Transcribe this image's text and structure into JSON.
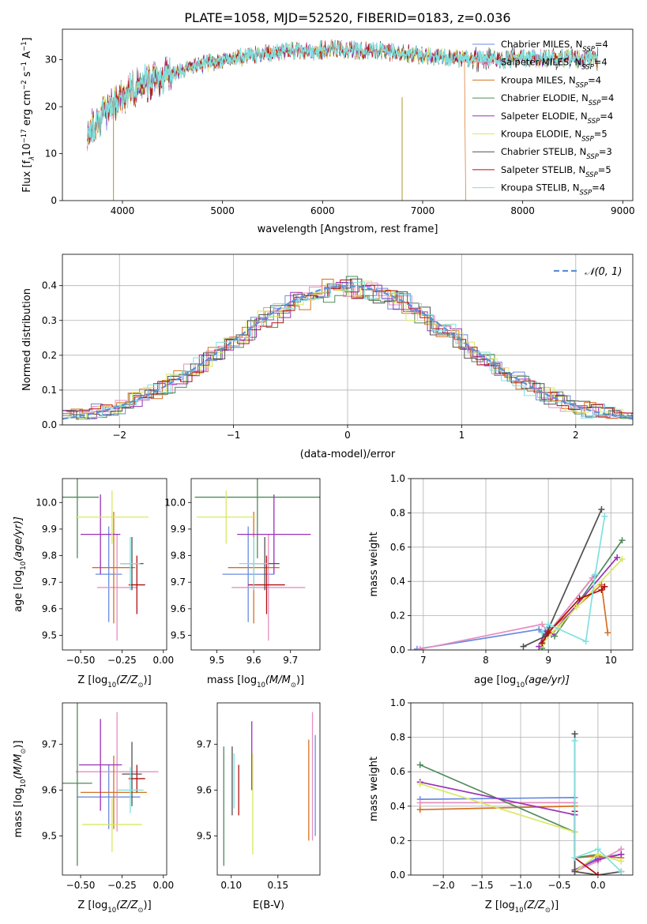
{
  "figure": {
    "title": "PLATE=1058, MJD=52520, FIBERID=0183, z=0.036"
  },
  "chart_data": [
    {
      "id": "spectrum",
      "type": "line",
      "xlabel": "wavelength [Angstrom, rest frame]",
      "ylabel": "Flux [f",
      "ylabel_lambda": "λ",
      "ylabel_rest": "10",
      "ylabel_exp": "−17",
      "ylabel_units": " erg cm",
      "ylabel_exp2": "−2",
      "ylabel_s": " s",
      "ylabel_exp3": "−1",
      "ylabel_A": " A",
      "ylabel_exp4": "−1",
      "ylabel_end": "]",
      "xlim": [
        3400,
        9100
      ],
      "ylim": [
        0,
        36.5
      ],
      "xticks": [
        4000,
        5000,
        6000,
        7000,
        8000,
        9000
      ],
      "yticks": [
        0,
        10,
        20,
        30
      ],
      "legend_position": "upper-right",
      "continuum": {
        "x": [
          3650,
          3750,
          3850,
          3950,
          4050,
          4150,
          4300,
          4500,
          4700,
          4900,
          5100,
          5300,
          5500,
          5700,
          5900,
          6100,
          6300,
          6500,
          6700,
          6900,
          7100,
          7300,
          7450
        ],
        "y": [
          14,
          17,
          19,
          21,
          23,
          24.5,
          25.5,
          27,
          28.5,
          29.5,
          30.3,
          31,
          31.5,
          31.8,
          32,
          32.2,
          32.1,
          32,
          31.6,
          31.2,
          30.8,
          30.4,
          30.2
        ]
      },
      "series": [
        {
          "name": "Chabrier MILES, N",
          "sub": "SSP",
          "suffix": "=4",
          "color": "#6a8be0"
        },
        {
          "name": "Salpeter MILES, N",
          "sub": "SSP",
          "suffix": "=4",
          "color": "#e68fbf"
        },
        {
          "name": "Kroupa MILES, N",
          "sub": "SSP",
          "suffix": "=4",
          "color": "#d57020"
        },
        {
          "name": "Chabrier ELODIE, N",
          "sub": "SSP",
          "suffix": "=4",
          "color": "#508a5a"
        },
        {
          "name": "Salpeter ELODIE, N",
          "sub": "SSP",
          "suffix": "=4",
          "color": "#9b30b8"
        },
        {
          "name": "Kroupa ELODIE, N",
          "sub": "SSP",
          "suffix": "=5",
          "color": "#d8e860"
        },
        {
          "name": "Chabrier STELIB, N",
          "sub": "SSP",
          "suffix": "=3",
          "color": "#505050"
        },
        {
          "name": "Salpeter STELIB, N",
          "sub": "SSP",
          "suffix": "=5",
          "color": "#b01010"
        },
        {
          "name": "Kroupa STELIB, N",
          "sub": "SSP",
          "suffix": "=4",
          "color": "#80e0e0"
        }
      ]
    },
    {
      "id": "residuals",
      "type": "bar",
      "xlabel": "(data-model)/error",
      "ylabel": "Normed distribution",
      "xlim": [
        -2.5,
        2.5
      ],
      "ylim": [
        0,
        0.49
      ],
      "xticks": [
        -2,
        -1,
        0,
        1,
        2
      ],
      "xtick_labels": [
        "−2",
        "−1",
        "0",
        "1",
        "2"
      ],
      "yticks": [
        0.0,
        0.1,
        0.2,
        0.3,
        0.4
      ],
      "ytick_labels": [
        "0.0",
        "0.1",
        "0.2",
        "0.3",
        "0.4"
      ],
      "grid": true,
      "legend_position": "upper-right",
      "gaussian_label": "𝒩(0, 1)",
      "gaussian_color": "#5b8fd6",
      "bin_width": 0.1
    },
    {
      "id": "age-vs-Z",
      "type": "scatter",
      "xlabel": "Z [log",
      "xlabel_sub": "10",
      "xlabel_rest": "(Z/Z",
      "xlabel_sun": "⊙",
      "xlabel_end": ")]",
      "ylabel": "age  [log",
      "ylabel_sub": "10",
      "ylabel_rest": "(age/yr)]",
      "xlim": [
        -0.61,
        0.02
      ],
      "ylim": [
        9.445,
        10.09
      ],
      "xticks": [
        -0.5,
        -0.25,
        0.0
      ],
      "xtick_labels": [
        "−0.50",
        "−0.25",
        "0.00"
      ],
      "yticks": [
        9.5,
        9.6,
        9.7,
        9.8,
        9.9,
        10.0
      ],
      "ytick_labels": [
        "9.5",
        "9.6",
        "9.7",
        "9.8",
        "9.9",
        "10.0"
      ],
      "points": [
        {
          "x": -0.33,
          "y": 9.73,
          "xerr": 0.08,
          "yerr": 0.18,
          "color": "#6a8be0"
        },
        {
          "x": -0.28,
          "y": 9.68,
          "xerr": 0.12,
          "yerr": 0.2,
          "color": "#e68fbf"
        },
        {
          "x": -0.3,
          "y": 9.755,
          "xerr": 0.13,
          "yerr": 0.21,
          "color": "#d57020"
        },
        {
          "x": -0.52,
          "y": 10.02,
          "xerr": 0.13,
          "yerr": 0.23,
          "color": "#508a5a"
        },
        {
          "x": -0.38,
          "y": 9.88,
          "xerr": 0.12,
          "yerr": 0.15,
          "color": "#9b30b8"
        },
        {
          "x": -0.31,
          "y": 9.945,
          "xerr": 0.22,
          "yerr": 0.1,
          "color": "#d8e860"
        },
        {
          "x": -0.19,
          "y": 9.77,
          "xerr": 0.07,
          "yerr": 0.1,
          "color": "#505050"
        },
        {
          "x": -0.16,
          "y": 9.69,
          "xerr": 0.05,
          "yerr": 0.11,
          "color": "#b01010"
        },
        {
          "x": -0.2,
          "y": 9.77,
          "xerr": 0.06,
          "yerr": 0.1,
          "color": "#80e0e0"
        }
      ]
    },
    {
      "id": "age-vs-mass",
      "type": "scatter",
      "xlabel": "mass [log",
      "xlabel_sub": "10",
      "xlabel_rest": "(M/M",
      "xlabel_sun": "⊙",
      "xlabel_end": ")]",
      "xlim": [
        9.43,
        9.78
      ],
      "ylim": [
        9.445,
        10.09
      ],
      "xticks": [
        9.5,
        9.6,
        9.7
      ],
      "xtick_labels": [
        "9.5",
        "9.6",
        "9.7"
      ],
      "yticks": [
        9.5,
        9.6,
        9.7,
        9.8,
        9.9,
        10.0
      ],
      "ytick_labels": [
        "9.5",
        "9.6",
        "9.7",
        "9.8",
        "9.9",
        "10.0"
      ],
      "points": [
        {
          "x": 9.585,
          "y": 9.73,
          "xerr": 0.07,
          "yerr": 0.18,
          "color": "#6a8be0"
        },
        {
          "x": 9.64,
          "y": 9.68,
          "xerr": 0.1,
          "yerr": 0.2,
          "color": "#e68fbf"
        },
        {
          "x": 9.6,
          "y": 9.755,
          "xerr": 0.07,
          "yerr": 0.21,
          "color": "#d57020"
        },
        {
          "x": 9.61,
          "y": 10.02,
          "xerr": 0.17,
          "yerr": 0.23,
          "color": "#508a5a"
        },
        {
          "x": 9.655,
          "y": 9.88,
          "xerr": 0.1,
          "yerr": 0.15,
          "color": "#9b30b8"
        },
        {
          "x": 9.525,
          "y": 9.945,
          "xerr": 0.08,
          "yerr": 0.1,
          "color": "#d8e860"
        },
        {
          "x": 9.63,
          "y": 9.77,
          "xerr": 0.04,
          "yerr": 0.1,
          "color": "#505050"
        },
        {
          "x": 9.635,
          "y": 9.69,
          "xerr": 0.05,
          "yerr": 0.11,
          "color": "#b01010"
        },
        {
          "x": 9.6,
          "y": 9.77,
          "xerr": 0.04,
          "yerr": 0.1,
          "color": "#80e0e0"
        }
      ]
    },
    {
      "id": "mass-weight-vs-age",
      "type": "line",
      "xlabel": "age  [log",
      "xlabel_sub": "10",
      "xlabel_rest": "(age/yr)]",
      "ylabel": "mass weight",
      "xlim": [
        6.8,
        10.35
      ],
      "ylim": [
        0,
        1
      ],
      "xticks": [
        7,
        8,
        9,
        10
      ],
      "xtick_labels": [
        "7",
        "8",
        "9",
        "10"
      ],
      "yticks": [
        0.0,
        0.2,
        0.4,
        0.6,
        0.8,
        1.0
      ],
      "ytick_labels": [
        "0.0",
        "0.2",
        "0.4",
        "0.6",
        "0.8",
        "1.0"
      ],
      "grid": true,
      "series": [
        {
          "color": "#6a8be0",
          "x": [
            6.9,
            8.85,
            8.95,
            9.75
          ],
          "y": [
            0.005,
            0.12,
            0.08,
            0.44
          ]
        },
        {
          "color": "#e68fbf",
          "x": [
            6.95,
            8.9,
            9.0,
            9.7
          ],
          "y": [
            0.005,
            0.15,
            0.1,
            0.42
          ]
        },
        {
          "color": "#d57020",
          "x": [
            8.85,
            8.95,
            9.85,
            9.95
          ],
          "y": [
            0.02,
            0.09,
            0.38,
            0.1
          ]
        },
        {
          "color": "#508a5a",
          "x": [
            8.9,
            9.0,
            9.1,
            10.18
          ],
          "y": [
            0.01,
            0.13,
            0.08,
            0.64
          ]
        },
        {
          "color": "#9b30b8",
          "x": [
            8.85,
            8.95,
            9.05,
            10.1
          ],
          "y": [
            0.02,
            0.11,
            0.09,
            0.54
          ]
        },
        {
          "color": "#d8e860",
          "x": [
            8.9,
            9.05,
            9.15,
            9.45,
            10.18
          ],
          "y": [
            0.03,
            0.1,
            0.13,
            0.25,
            0.53
          ]
        },
        {
          "color": "#505050",
          "x": [
            8.6,
            8.95,
            9.85
          ],
          "y": [
            0.02,
            0.08,
            0.82
          ]
        },
        {
          "color": "#b01010",
          "x": [
            8.9,
            9.0,
            9.5,
            9.85,
            9.9
          ],
          "y": [
            0.04,
            0.1,
            0.3,
            0.35,
            0.37
          ]
        },
        {
          "color": "#80e0e0",
          "x": [
            8.9,
            9.0,
            9.6,
            9.75,
            9.9
          ],
          "y": [
            0.1,
            0.15,
            0.05,
            0.44,
            0.78
          ]
        }
      ]
    },
    {
      "id": "mass-vs-Z",
      "type": "scatter",
      "xlabel": "Z [log",
      "xlabel_sub": "10",
      "xlabel_rest": "(Z/Z",
      "xlabel_sun": "⊙",
      "xlabel_end": ")]",
      "ylabel": "mass [log",
      "ylabel_sub": "10",
      "ylabel_rest": "(M/M",
      "ylabel_sun": "⊙",
      "ylabel_end": ")]",
      "xlim": [
        -0.61,
        0.02
      ],
      "ylim": [
        9.415,
        9.79
      ],
      "xticks": [
        -0.5,
        -0.25,
        0.0
      ],
      "xtick_labels": [
        "−0.50",
        "−0.25",
        "0.00"
      ],
      "yticks": [
        9.5,
        9.6,
        9.7
      ],
      "ytick_labels": [
        "9.5",
        "9.6",
        "9.7"
      ],
      "points": [
        {
          "x": -0.33,
          "y": 9.585,
          "xerr": 0.19,
          "yerr": 0.07,
          "color": "#6a8be0"
        },
        {
          "x": -0.28,
          "y": 9.64,
          "xerr": 0.25,
          "yerr": 0.13,
          "color": "#e68fbf"
        },
        {
          "x": -0.3,
          "y": 9.595,
          "xerr": 0.2,
          "yerr": 0.08,
          "color": "#d57020"
        },
        {
          "x": -0.52,
          "y": 9.615,
          "xerr": 0.09,
          "yerr": 0.18,
          "color": "#508a5a"
        },
        {
          "x": -0.38,
          "y": 9.655,
          "xerr": 0.13,
          "yerr": 0.1,
          "color": "#9b30b8"
        },
        {
          "x": -0.31,
          "y": 9.525,
          "xerr": 0.18,
          "yerr": 0.06,
          "color": "#d8e860"
        },
        {
          "x": -0.19,
          "y": 9.635,
          "xerr": 0.06,
          "yerr": 0.07,
          "color": "#505050"
        },
        {
          "x": -0.16,
          "y": 9.625,
          "xerr": 0.05,
          "yerr": 0.03,
          "color": "#b01010"
        },
        {
          "x": -0.2,
          "y": 9.6,
          "xerr": 0.08,
          "yerr": 0.05,
          "color": "#80e0e0"
        }
      ]
    },
    {
      "id": "mass-vs-ebv",
      "type": "scatter",
      "xlabel": "E(B-V)",
      "xlim": [
        0.085,
        0.195
      ],
      "ylim": [
        9.415,
        9.79
      ],
      "xticks": [
        0.1,
        0.15
      ],
      "xtick_labels": [
        "0.10",
        "0.15"
      ],
      "yticks": [
        9.5,
        9.6,
        9.7
      ],
      "ytick_labels": [
        "9.5",
        "9.6",
        "9.7"
      ],
      "points": [
        {
          "x": 0.19,
          "y": 9.61,
          "xerr": 0.0,
          "yerr": 0.11,
          "color": "#6a8be0"
        },
        {
          "x": 0.187,
          "y": 9.63,
          "xerr": 0.0,
          "yerr": 0.14,
          "color": "#e68fbf"
        },
        {
          "x": 0.183,
          "y": 9.6,
          "xerr": 0.0,
          "yerr": 0.11,
          "color": "#d57020"
        },
        {
          "x": 0.092,
          "y": 9.565,
          "xerr": 0.0,
          "yerr": 0.13,
          "color": "#508a5a"
        },
        {
          "x": 0.122,
          "y": 9.675,
          "xerr": 0.0,
          "yerr": 0.075,
          "color": "#9b30b8"
        },
        {
          "x": 0.123,
          "y": 9.57,
          "xerr": 0.0,
          "yerr": 0.11,
          "color": "#d8e860"
        },
        {
          "x": 0.101,
          "y": 9.62,
          "xerr": 0.0,
          "yerr": 0.075,
          "color": "#505050"
        },
        {
          "x": 0.108,
          "y": 9.6,
          "xerr": 0.0,
          "yerr": 0.055,
          "color": "#b01010"
        },
        {
          "x": 0.103,
          "y": 9.62,
          "xerr": 0.0,
          "yerr": 0.06,
          "color": "#80e0e0"
        }
      ]
    },
    {
      "id": "mass-weight-vs-Z",
      "type": "line",
      "xlabel": "Z [log",
      "xlabel_sub": "10",
      "xlabel_rest": "(Z/Z",
      "xlabel_sun": "⊙",
      "xlabel_end": ")]",
      "ylabel": "mass weight",
      "xlim": [
        -2.42,
        0.45
      ],
      "ylim": [
        0,
        1
      ],
      "xticks": [
        -2.0,
        -1.5,
        -1.0,
        -0.5,
        0.0
      ],
      "xtick_labels": [
        "−2.0",
        "−1.5",
        "−1.0",
        "−0.5",
        "0.0"
      ],
      "yticks": [
        0.0,
        0.2,
        0.4,
        0.6,
        0.8,
        1.0
      ],
      "ytick_labels": [
        "0.0",
        "0.2",
        "0.4",
        "0.6",
        "0.8",
        "1.0"
      ],
      "grid": true,
      "series": [
        {
          "color": "#6a8be0",
          "x": [
            -2.3,
            -0.3,
            -0.3,
            0.0,
            0.3
          ],
          "y": [
            0.44,
            0.45,
            0.03,
            0.1,
            0.12
          ]
        },
        {
          "color": "#e68fbf",
          "x": [
            -2.3,
            -0.3,
            -0.3,
            0.0,
            0.3
          ],
          "y": [
            0.42,
            0.42,
            0.02,
            0.08,
            0.15
          ]
        },
        {
          "color": "#d57020",
          "x": [
            -2.3,
            -0.3,
            -0.3,
            0.0,
            0.3
          ],
          "y": [
            0.38,
            0.4,
            0.1,
            0.11,
            0.1
          ]
        },
        {
          "color": "#508a5a",
          "x": [
            -2.3,
            -0.3,
            -0.3,
            0.0
          ],
          "y": [
            0.64,
            0.25,
            0.1,
            0.12
          ]
        },
        {
          "color": "#9b30b8",
          "x": [
            -2.3,
            -0.3,
            -0.3,
            0.0,
            0.3
          ],
          "y": [
            0.54,
            0.35,
            0.03,
            0.09,
            0.12
          ]
        },
        {
          "color": "#d8e860",
          "x": [
            -2.3,
            -0.3,
            -0.3,
            0.0,
            0.3
          ],
          "y": [
            0.53,
            0.25,
            0.02,
            0.12,
            0.08
          ]
        },
        {
          "color": "#505050",
          "x": [
            -0.3,
            -0.3,
            0.0,
            0.3
          ],
          "y": [
            0.82,
            0.02,
            0.0,
            0.02
          ]
        },
        {
          "color": "#b01010",
          "x": [
            -0.3,
            -0.3,
            0.0
          ],
          "y": [
            0.37,
            0.1,
            0.0
          ]
        },
        {
          "color": "#80e0e0",
          "x": [
            -0.3,
            -0.3,
            0.0,
            0.3
          ],
          "y": [
            0.78,
            0.1,
            0.15,
            0.02
          ]
        }
      ]
    }
  ]
}
